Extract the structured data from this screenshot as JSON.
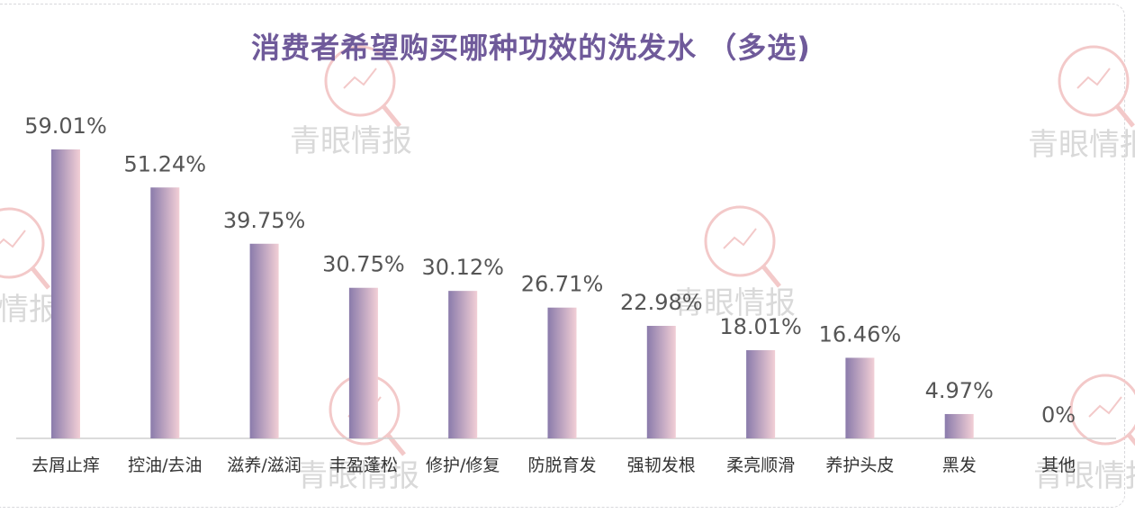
{
  "chart_data": {
    "type": "bar",
    "title": "消费者希望购买哪种功效的洗发水 （多选)",
    "categories": [
      "去屑止痒",
      "控油/去油",
      "滋养/滋润",
      "丰盈蓬松",
      "修护/修复",
      "防脱育发",
      "强韧发根",
      "柔亮顺滑",
      "养护头皮",
      "黑发",
      "其他"
    ],
    "values": [
      59.01,
      51.24,
      39.75,
      30.75,
      30.12,
      26.71,
      22.98,
      18.01,
      16.46,
      4.97,
      0
    ],
    "value_labels": [
      "59.01%",
      "51.24%",
      "39.75%",
      "30.75%",
      "30.12%",
      "26.71%",
      "22.98%",
      "18.01%",
      "16.46%",
      "4.97%",
      "0%"
    ],
    "unit": "%",
    "ylim": [
      0,
      60
    ],
    "grid": false,
    "legend": "none",
    "xlabel": "",
    "ylabel": ""
  },
  "watermark": {
    "text": "青眼情报",
    "color": "#d9d9d9",
    "ring_color": "#f3c9c9"
  },
  "colors": {
    "title": "#6f5a9a",
    "bar_left": "#8a7bab",
    "bar_right": "#f2cfd6",
    "axis": "#cfcfcf",
    "value_text": "#555555",
    "category_text": "#333333"
  }
}
